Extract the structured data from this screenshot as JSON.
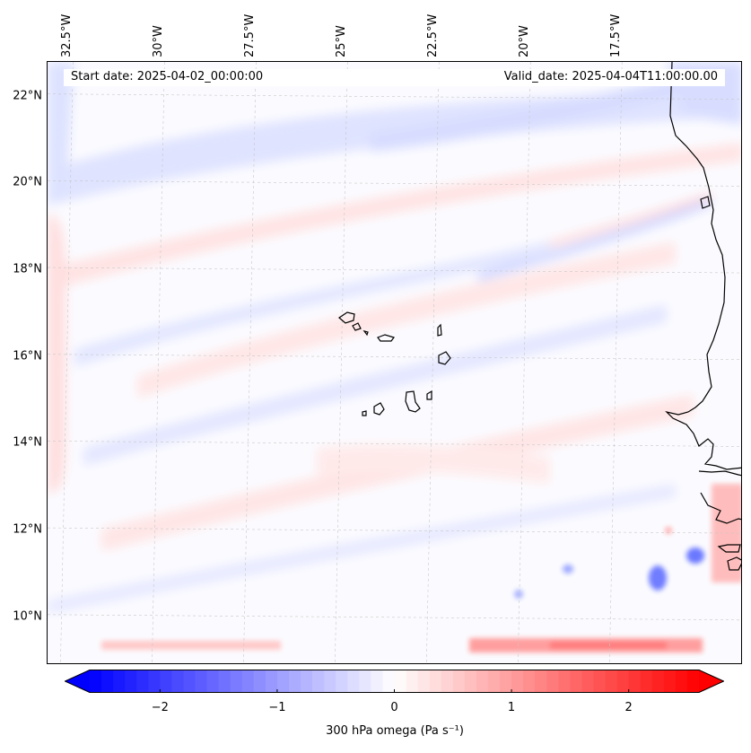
{
  "map": {
    "title_left": "Start date: 2025-04-02_00:00:00",
    "title_right": "Valid_date: 2025-04-04T11:00:00.00",
    "variable": "300 hPa omega",
    "units": "Pa s⁻¹",
    "extent": {
      "lon_min": -33.0,
      "lon_max": -14.0,
      "lat_min": 8.9,
      "lat_max": 22.8
    },
    "lon_labels": [
      "32.5°W",
      "30°W",
      "27.5°W",
      "25°W",
      "22.5°W",
      "20°W",
      "17.5°W"
    ],
    "lon_values": [
      -32.5,
      -30.0,
      -27.5,
      -25.0,
      -22.5,
      -20.0,
      -17.5
    ],
    "lat_labels": [
      "22°N",
      "20°N",
      "18°N",
      "16°N",
      "14°N",
      "12°N",
      "10°N"
    ],
    "lat_values": [
      22,
      20,
      18,
      16,
      14,
      12,
      10
    ],
    "features": [
      "West African coastline",
      "Cape Verde islands"
    ],
    "colors": {
      "neg": "#0000ff",
      "zero": "#ffffff",
      "pos": "#ff0000",
      "coast": "#000000",
      "grid": "#c8c8c8"
    }
  },
  "colorbar": {
    "label": "300 hPa omega (Pa s⁻¹)",
    "range": [
      -2.6,
      2.6
    ],
    "tick_values": [
      -2,
      -1,
      0,
      1,
      2
    ],
    "tick_labels": [
      "−2",
      "−1",
      "0",
      "1",
      "2"
    ]
  }
}
